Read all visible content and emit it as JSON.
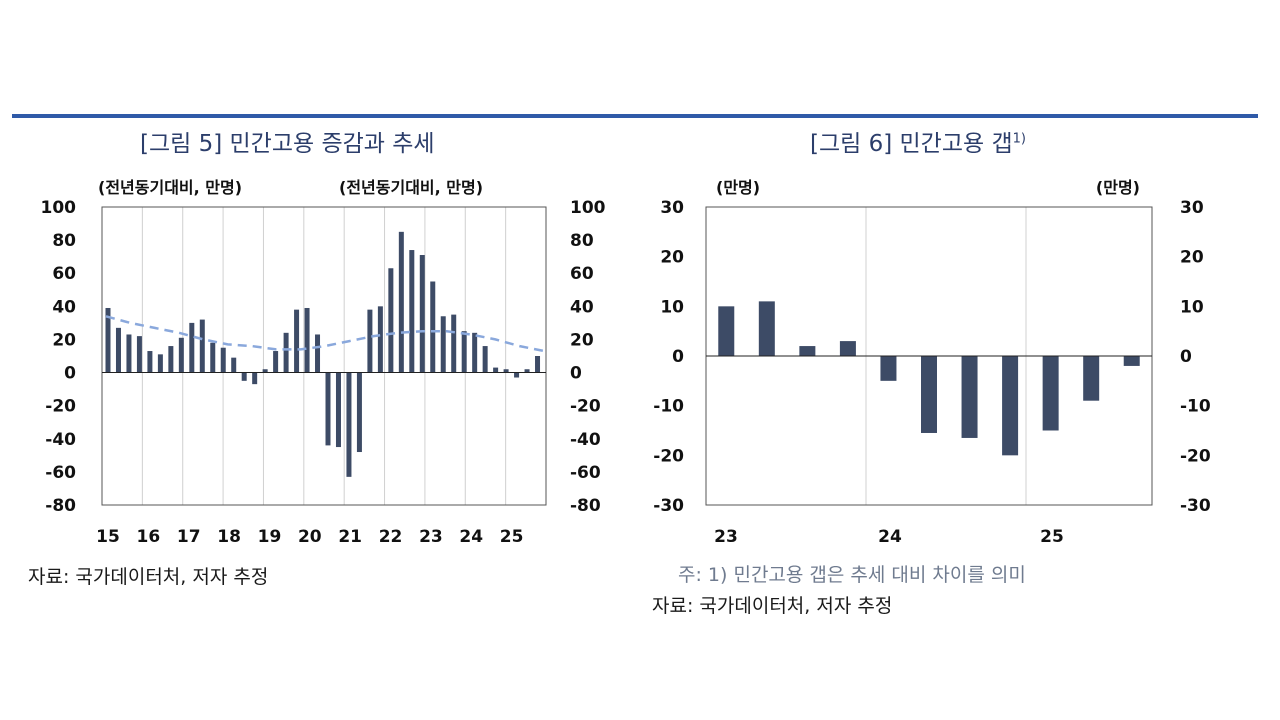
{
  "figure5": {
    "title": "[그림 5] 민간고용 증감과 추세",
    "unit_left": "(전년동기대비, 만명)",
    "unit_right": "(전년동기대비, 만명)",
    "source": "자료: 국가데이터처, 저자 추정"
  },
  "figure6": {
    "title": "[그림 6] 민간고용 갭",
    "title_sup": "1)",
    "unit_left": "(만명)",
    "unit_right": "(만명)",
    "note": "주: 1) 민간고용 갭은 추세 대비 차이를 의미",
    "source": "자료: 국가데이터처, 저자 추정"
  },
  "colors": {
    "bar": "#3d4b66",
    "trend": "#8aa8dc",
    "title": "#2c3e6b",
    "rule": "#2f5aa8",
    "grid": "#d0d0d0"
  },
  "chart_data": [
    {
      "type": "bar",
      "title": "[그림 5] 민간고용 증감과 추세",
      "ylim": [
        -80,
        100
      ],
      "yticks": [
        -80,
        -60,
        -40,
        -20,
        0,
        20,
        40,
        60,
        80,
        100
      ],
      "x_labels": [
        "15",
        "16",
        "17",
        "18",
        "19",
        "20",
        "21",
        "22",
        "23",
        "24",
        "25"
      ],
      "grid": true,
      "series": [
        {
          "kind": "bar",
          "values": [
            39,
            27,
            23,
            22,
            13,
            11,
            16,
            21,
            30,
            32,
            18,
            15,
            9,
            -5,
            -7,
            2,
            13,
            24,
            38,
            39,
            23,
            -44,
            -45,
            -63,
            -48,
            38,
            40,
            63,
            85,
            74,
            71,
            55,
            34,
            35,
            25,
            24,
            16,
            3,
            2,
            -3,
            2,
            10
          ]
        },
        {
          "kind": "line",
          "style": "dashed",
          "values": [
            34,
            30,
            27,
            24,
            20,
            17,
            16,
            14,
            14,
            16,
            19,
            22,
            24,
            25,
            25,
            23,
            20,
            16,
            13
          ]
        }
      ]
    },
    {
      "type": "bar",
      "title": "[그림 6] 민간고용 갭",
      "ylim": [
        -30,
        30
      ],
      "yticks": [
        -30,
        -20,
        -10,
        0,
        10,
        20,
        30
      ],
      "x_labels": [
        "23",
        "24",
        "25"
      ],
      "grid": true,
      "series": [
        {
          "kind": "bar",
          "values": [
            10,
            11,
            2,
            3,
            -5,
            -15.5,
            -16.5,
            -20,
            -15,
            -9,
            -2
          ]
        }
      ]
    }
  ]
}
